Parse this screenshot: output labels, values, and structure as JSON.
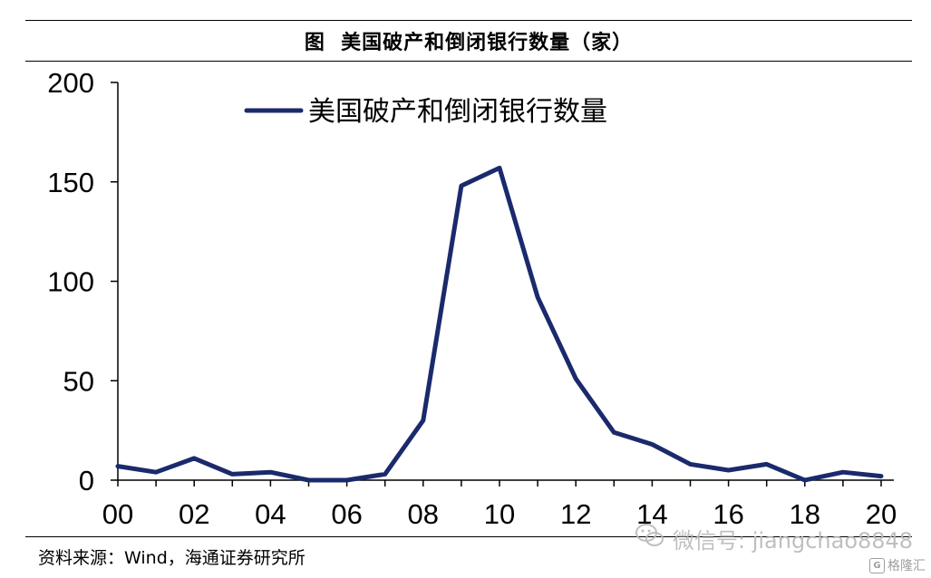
{
  "figure": {
    "title": "图  美国破产和倒闭银行数量（家）",
    "source": "资料来源：Wind，海通证券研究所"
  },
  "watermark": {
    "text": "微信号: jiangchao8848",
    "icon": "wechat-icon",
    "logo_text": "格隆汇",
    "logo_icon": "gelonghui-logo"
  },
  "chart_data": {
    "type": "line",
    "title": "",
    "xlabel": "",
    "ylabel": "",
    "x": [
      "00",
      "01",
      "02",
      "03",
      "04",
      "05",
      "06",
      "07",
      "08",
      "09",
      "10",
      "11",
      "12",
      "13",
      "14",
      "15",
      "16",
      "17",
      "18",
      "19",
      "20"
    ],
    "xtick_labels": [
      "00",
      "02",
      "04",
      "06",
      "08",
      "10",
      "12",
      "14",
      "16",
      "18",
      "20"
    ],
    "yticks": [
      "0",
      "50",
      "100",
      "150",
      "200"
    ],
    "ylim": [
      0,
      200
    ],
    "grid": false,
    "legend_position": "top-left",
    "series": [
      {
        "name": "美国破产和倒闭银行数量",
        "color": "#1a2a6c",
        "values": [
          7,
          4,
          11,
          3,
          4,
          0,
          0,
          3,
          30,
          148,
          157,
          92,
          51,
          24,
          18,
          8,
          5,
          8,
          0,
          4,
          2
        ]
      }
    ]
  }
}
